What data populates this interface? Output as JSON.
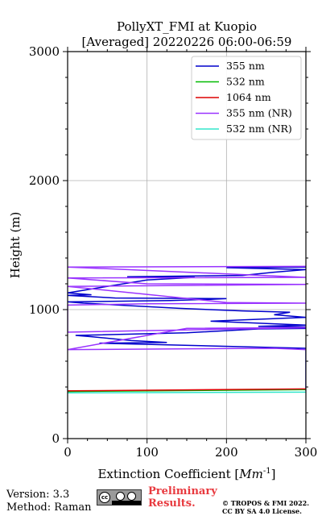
{
  "chart_data": {
    "type": "line",
    "title": "PollyXT_FMI at Kuopio",
    "subtitle": "[Averaged] 20220226 06:00-06:59",
    "xlabel": "Extinction Coefficient [",
    "xlabel_unit": "Mm",
    "xlabel_exp": "-1",
    "xlabel_end": "]",
    "ylabel": "Height (m)",
    "xlim": [
      0,
      300
    ],
    "ylim": [
      0,
      3000
    ],
    "xticks": [
      0,
      100,
      200,
      300
    ],
    "yticks": [
      0,
      1000,
      2000,
      3000
    ],
    "grid": true,
    "legend_position": "top-right",
    "series": [
      {
        "name": "355 nm",
        "color": "#0000cc",
        "points": [
          [
            300,
            370
          ],
          [
            300,
            700
          ],
          [
            40,
            740
          ],
          [
            125,
            745
          ],
          [
            80,
            760
          ],
          [
            30,
            790
          ],
          [
            10,
            800
          ],
          [
            150,
            820
          ],
          [
            240,
            850
          ],
          [
            380,
            860
          ],
          [
            240,
            870
          ],
          [
            300,
            880
          ],
          [
            180,
            910
          ],
          [
            300,
            940
          ],
          [
            260,
            960
          ],
          [
            280,
            980
          ],
          [
            220,
            990
          ],
          [
            140,
            1010
          ],
          [
            80,
            1030
          ],
          [
            20,
            1050
          ],
          [
            0,
            1060
          ],
          [
            130,
            1070
          ],
          [
            180,
            1080
          ],
          [
            200,
            1085
          ],
          [
            60,
            1090
          ],
          [
            0,
            1110
          ],
          [
            30,
            1115
          ],
          [
            0,
            1130
          ],
          [
            100,
            1230
          ],
          [
            160,
            1250
          ],
          [
            75,
            1255
          ],
          [
            220,
            1265
          ],
          [
            260,
            1290
          ],
          [
            300,
            1310
          ],
          [
            230,
            1320
          ],
          [
            200,
            1325
          ],
          [
            300,
            1330
          ]
        ]
      },
      {
        "name": "532 nm",
        "color": "#00bb00",
        "points": [
          [
            0,
            365
          ],
          [
            300,
            380
          ]
        ]
      },
      {
        "name": "1064 nm",
        "color": "#dd0000",
        "points": [
          [
            0,
            370
          ],
          [
            300,
            385
          ]
        ]
      },
      {
        "name": "355 nm (NR)",
        "color": "#9933ff",
        "points": [
          [
            300,
            690
          ],
          [
            260,
            700
          ],
          [
            0,
            690
          ],
          [
            0,
            690
          ],
          [
            150,
            855
          ],
          [
            300,
            860
          ],
          [
            0,
            825
          ],
          [
            0,
            1035
          ],
          [
            100,
            1045
          ],
          [
            300,
            1050
          ],
          [
            200,
            1055
          ],
          [
            0,
            1180
          ],
          [
            300,
            1195
          ],
          [
            100,
            1200
          ],
          [
            0,
            1245
          ],
          [
            300,
            1250
          ],
          [
            0,
            1330
          ],
          [
            300,
            1335
          ]
        ]
      },
      {
        "name": "532 nm (NR)",
        "color": "#33e6cc",
        "points": [
          [
            0,
            355
          ],
          [
            300,
            360
          ]
        ]
      }
    ]
  },
  "footer": {
    "version": "Version: 3.3",
    "method": "Method: Raman",
    "preliminary": "Preliminary",
    "results": "Results.",
    "copyright_line1": "© TROPOS & FMI 2022.",
    "copyright_line2": "CC BY SA 4.0 License."
  }
}
